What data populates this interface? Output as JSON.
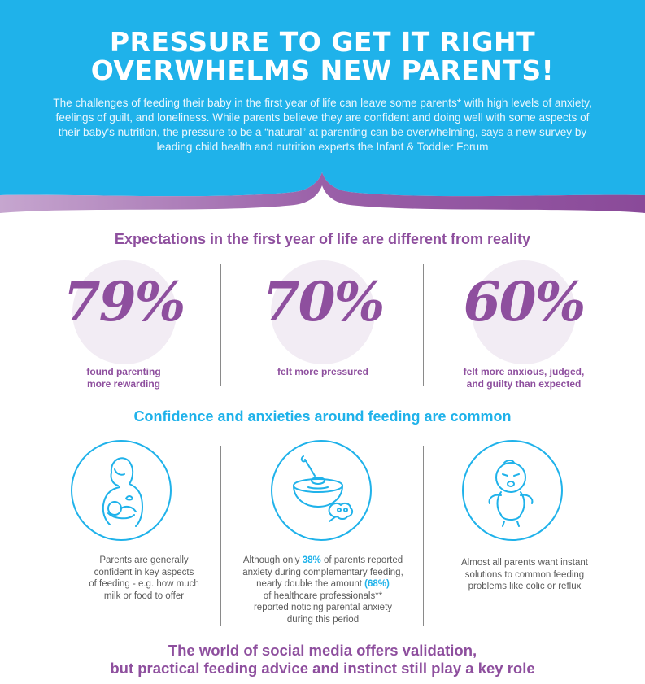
{
  "header": {
    "title_line1": "PRESSURE TO GET IT RIGHT",
    "title_line2": "OVERWHELMS NEW PARENTS!",
    "intro": "The challenges of feeding their baby in the first year of life can leave some parents* with high levels of anxiety, feelings of guilt, and loneliness. While parents believe they are confident and doing well with some aspects of their baby's nutrition, the pressure to be a “natural” at parenting can be overwhelming, says a new survey by leading child health and nutrition experts the Infant & Toddler Forum",
    "background_color": "#1fb2ea",
    "wave_color": "#8e4f9e"
  },
  "expectations": {
    "heading": "Expectations in the first year of life are different from reality",
    "stats": [
      {
        "value": "79%",
        "label_line1": "found parenting",
        "label_line2": "more rewarding"
      },
      {
        "value": "70%",
        "label_line1": "felt more pressured",
        "label_line2": ""
      },
      {
        "value": "60%",
        "label_line1": "felt more anxious, judged,",
        "label_line2": "and guilty than expected"
      }
    ]
  },
  "confidence": {
    "heading": "Confidence and anxieties around feeding are common",
    "items": [
      {
        "icon": "breastfeeding-mother-icon",
        "lines": [
          "Parents are generally",
          "confident in key aspects",
          "of feeding - e.g. how much",
          "milk or food to offer"
        ]
      },
      {
        "icon": "bowl-and-spoon-icon",
        "line1_pre": "Although only ",
        "line1_hl": "38%",
        "line1_post": " of parents reported",
        "line2": "anxiety during complementary feeding,",
        "line3_pre": "nearly double the amount ",
        "line3_hl": "(68%)",
        "line4": "of healthcare professionals**",
        "line5": "reported noticing parental anxiety",
        "line6": "during this period"
      },
      {
        "icon": "crying-baby-icon",
        "lines": [
          "Almost all parents want instant",
          "solutions to common feeding",
          "problems like colic or reflux"
        ]
      }
    ]
  },
  "social": {
    "line1": "The world of social media offers validation,",
    "line2": "but practical feeding advice and instinct still play a key role"
  }
}
